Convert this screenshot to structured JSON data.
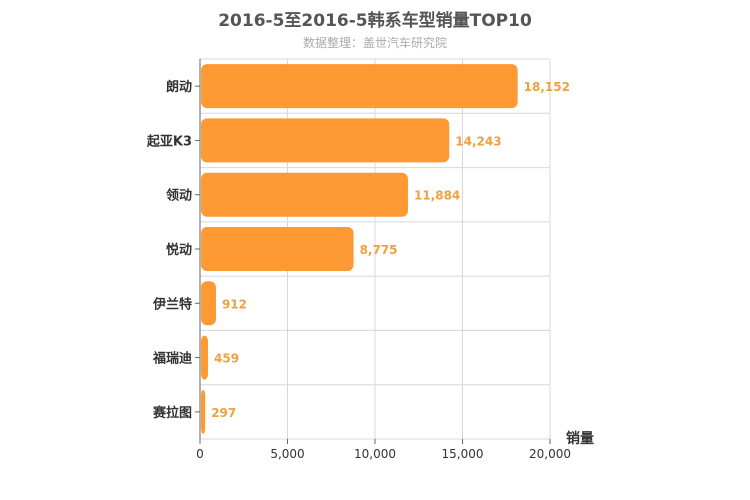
{
  "chart_data": {
    "type": "bar",
    "orientation": "horizontal",
    "title": "2016-5至2016-5韩系车型销量TOP10",
    "subtitle": "数据整理：盖世汽车研究院",
    "categories": [
      "朗动",
      "起亚K3",
      "领动",
      "悦动",
      "伊兰特",
      "福瑞迪",
      "赛拉图"
    ],
    "values": [
      18152,
      14243,
      11884,
      8775,
      912,
      459,
      297
    ],
    "value_labels": [
      "18,152",
      "14,243",
      "11,884",
      "8,775",
      "912",
      "459",
      "297"
    ],
    "xlabel": "销量",
    "ylabel": "",
    "xlim": [
      0,
      20000
    ],
    "x_ticks": [
      0,
      5000,
      10000,
      15000,
      20000
    ],
    "x_tick_labels": [
      "0",
      "5,000",
      "10,000",
      "15,000",
      "20,000"
    ],
    "grid": true,
    "bar_color": "#ff9933",
    "value_label_color": "#f0a040"
  }
}
